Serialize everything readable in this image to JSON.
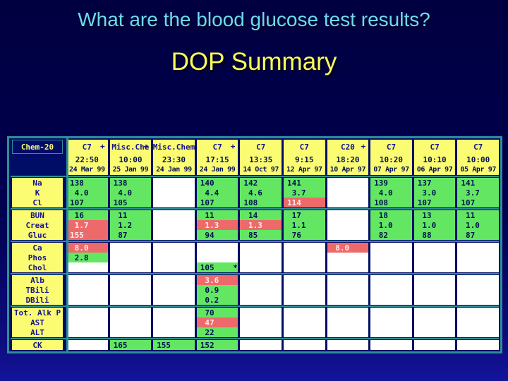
{
  "slide": {
    "question": "What are the blood glucose test results?",
    "title": "DOP Summary"
  },
  "colors": {
    "background_top": "#000040",
    "background_bottom": "#14149a",
    "question_text": "#6cd9f5",
    "title_text": "#fdfd55",
    "normal_result": "#63e763",
    "abnormal_result": "#ee6a6a",
    "header_yellow": "#fcfc72",
    "table_frame_teal": "#2f8d98",
    "grid_navy": "#000d66"
  },
  "table": {
    "corner_label": "Chem-20",
    "columns": [
      {
        "type": "C7",
        "plus": true,
        "time": "22:50",
        "date": "24 Mar 99"
      },
      {
        "type": "Misc.Che",
        "plus": true,
        "time": "10:00",
        "date": "25 Jan 99"
      },
      {
        "type": "Misc.Chem",
        "plus": false,
        "time": "23:30",
        "date": "24 Jan 99"
      },
      {
        "type": "C7",
        "plus": true,
        "time": "17:15",
        "date": "24 Jan 99"
      },
      {
        "type": "C7",
        "plus": false,
        "time": "13:35",
        "date": "14 Oct 97"
      },
      {
        "type": "C7",
        "plus": false,
        "time": "9:15",
        "date": "12 Apr 97"
      },
      {
        "type": "C20",
        "plus": true,
        "time": "18:20",
        "date": "10 Apr 97"
      },
      {
        "type": "C7",
        "plus": false,
        "time": "10:20",
        "date": "07 Apr 97"
      },
      {
        "type": "C7",
        "plus": false,
        "time": "10:10",
        "date": "06 Apr 97"
      },
      {
        "type": "C7",
        "plus": false,
        "time": "10:00",
        "date": "05 Apr 97"
      }
    ],
    "groups": [
      {
        "rows": [
          {
            "label": "Na",
            "cells": [
              "138",
              "138",
              null,
              "140",
              "142",
              "141",
              null,
              "139",
              "137",
              "141"
            ]
          },
          {
            "label": "K",
            "cells": [
              " 4.0",
              " 4.0",
              null,
              " 4.4",
              " 4.6",
              " 3.7",
              null,
              " 4.0",
              " 3.0",
              " 3.7"
            ]
          },
          {
            "label": "Cl",
            "cells": [
              "107",
              "105",
              null,
              "107",
              "108",
              {
                "v": "114",
                "h": true
              },
              null,
              "108",
              "107",
              "107"
            ]
          }
        ]
      },
      {
        "rows": [
          {
            "label": "BUN",
            "cells": [
              " 16",
              " 11",
              null,
              " 11",
              " 14",
              " 17",
              null,
              " 18",
              " 13",
              " 11"
            ]
          },
          {
            "label": "Creat",
            "cells": [
              {
                "v": " 1.7",
                "h": true
              },
              " 1.2",
              null,
              {
                "v": " 1.3",
                "h": true
              },
              {
                "v": " 1.3",
                "h": true
              },
              " 1.1",
              null,
              " 1.0",
              " 1.0",
              " 1.0"
            ]
          },
          {
            "label": "Gluc",
            "cells": [
              {
                "v": "155",
                "h": true
              },
              " 87",
              null,
              " 94",
              " 85",
              " 76",
              null,
              " 82",
              " 88",
              " 87"
            ]
          }
        ]
      },
      {
        "rows": [
          {
            "label": "Ca",
            "cells": [
              {
                "v": " 8.0",
                "h": true
              },
              null,
              null,
              null,
              null,
              null,
              {
                "v": " 8.0",
                "h": true
              },
              null,
              null,
              null
            ]
          },
          {
            "label": "Phos",
            "cells": [
              " 2.8",
              null,
              null,
              null,
              null,
              null,
              null,
              null,
              null,
              null
            ]
          },
          {
            "label": "Chol",
            "cells": [
              null,
              null,
              null,
              "105    *",
              null,
              null,
              null,
              null,
              null,
              null
            ]
          }
        ]
      },
      {
        "rows": [
          {
            "label": "Alb",
            "cells": [
              null,
              null,
              null,
              {
                "v": " 3.6",
                "h": true
              },
              null,
              null,
              null,
              null,
              null,
              null
            ]
          },
          {
            "label": "TBili",
            "cells": [
              null,
              null,
              null,
              " 0.9",
              null,
              null,
              null,
              null,
              null,
              null
            ]
          },
          {
            "label": "DBili",
            "cells": [
              null,
              null,
              null,
              " 0.2",
              null,
              null,
              null,
              null,
              null,
              null
            ]
          }
        ]
      },
      {
        "rows": [
          {
            "label": "Tot. Alk P",
            "cells": [
              null,
              null,
              null,
              " 70",
              null,
              null,
              null,
              null,
              null,
              null
            ]
          },
          {
            "label": "AST",
            "cells": [
              null,
              null,
              null,
              {
                "v": " 47",
                "h": true
              },
              null,
              null,
              null,
              null,
              null,
              null
            ]
          },
          {
            "label": "ALT",
            "cells": [
              null,
              null,
              null,
              " 22",
              null,
              null,
              null,
              null,
              null,
              null
            ]
          }
        ]
      },
      {
        "rows": [
          {
            "label": "CK",
            "cells": [
              null,
              "165",
              "155",
              "152",
              null,
              null,
              null,
              null,
              null,
              null
            ]
          }
        ]
      }
    ]
  }
}
